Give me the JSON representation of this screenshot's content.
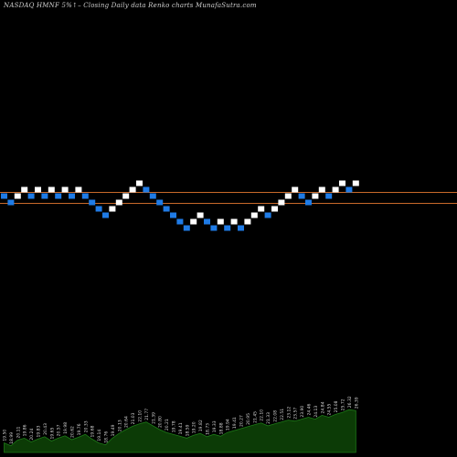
{
  "header": {
    "symbol": "NASDAQ HMNF",
    "change": "5%",
    "tail": "Closing Daily data  Renko charts MunafaSutra.com"
  },
  "chart_data": {
    "type": "renko",
    "title": "NASDAQ HMNF 5% Closing Daily data Renko charts MunafaSutra.com",
    "colors": {
      "up": "#ffffff",
      "down": "#1f7be6",
      "reference_line": "#c8692a",
      "volume_fill": "#0c3b06",
      "volume_line": "#1d7a17",
      "label": "#d8d8d8"
    },
    "reference_levels": [
      19.9,
      18.0
    ],
    "bricks": [
      {
        "dir": "down",
        "level": 19.0
      },
      {
        "dir": "down",
        "level": 18.0
      },
      {
        "dir": "up",
        "level": 19.0
      },
      {
        "dir": "up",
        "level": 20.0
      },
      {
        "dir": "down",
        "level": 19.0
      },
      {
        "dir": "up",
        "level": 20.0
      },
      {
        "dir": "down",
        "level": 19.0
      },
      {
        "dir": "up",
        "level": 20.0
      },
      {
        "dir": "down",
        "level": 19.0
      },
      {
        "dir": "up",
        "level": 20.0
      },
      {
        "dir": "down",
        "level": 19.0
      },
      {
        "dir": "up",
        "level": 20.0
      },
      {
        "dir": "down",
        "level": 19.0
      },
      {
        "dir": "down",
        "level": 18.0
      },
      {
        "dir": "down",
        "level": 17.0
      },
      {
        "dir": "down",
        "level": 16.0
      },
      {
        "dir": "up",
        "level": 17.0
      },
      {
        "dir": "up",
        "level": 18.0
      },
      {
        "dir": "up",
        "level": 19.0
      },
      {
        "dir": "up",
        "level": 20.0
      },
      {
        "dir": "up",
        "level": 21.0
      },
      {
        "dir": "down",
        "level": 20.0
      },
      {
        "dir": "down",
        "level": 19.0
      },
      {
        "dir": "down",
        "level": 18.0
      },
      {
        "dir": "down",
        "level": 17.0
      },
      {
        "dir": "down",
        "level": 16.0
      },
      {
        "dir": "down",
        "level": 15.0
      },
      {
        "dir": "down",
        "level": 14.0
      },
      {
        "dir": "up",
        "level": 15.0
      },
      {
        "dir": "up",
        "level": 16.0
      },
      {
        "dir": "down",
        "level": 15.0
      },
      {
        "dir": "down",
        "level": 14.0
      },
      {
        "dir": "up",
        "level": 15.0
      },
      {
        "dir": "down",
        "level": 14.0
      },
      {
        "dir": "up",
        "level": 15.0
      },
      {
        "dir": "down",
        "level": 14.0
      },
      {
        "dir": "up",
        "level": 15.0
      },
      {
        "dir": "up",
        "level": 16.0
      },
      {
        "dir": "up",
        "level": 17.0
      },
      {
        "dir": "down",
        "level": 16.0
      },
      {
        "dir": "up",
        "level": 17.0
      },
      {
        "dir": "up",
        "level": 18.0
      },
      {
        "dir": "up",
        "level": 19.0
      },
      {
        "dir": "up",
        "level": 20.0
      },
      {
        "dir": "down",
        "level": 19.0
      },
      {
        "dir": "down",
        "level": 18.0
      },
      {
        "dir": "up",
        "level": 19.0
      },
      {
        "dir": "up",
        "level": 20.0
      },
      {
        "dir": "down",
        "level": 19.0
      },
      {
        "dir": "up",
        "level": 20.0
      },
      {
        "dir": "up",
        "level": 21.0
      },
      {
        "dir": "down",
        "level": 20.0
      },
      {
        "dir": "up",
        "level": 21.0
      }
    ],
    "date_labels": [
      "19.50",
      "18.99",
      "20.11",
      "19.86",
      "20.24",
      "19.83",
      "20.43",
      "19.65",
      "20.57",
      "19.98",
      "20.62",
      "19.76",
      "20.33",
      "19.68",
      "19.14",
      "18.76",
      "19.49",
      "20.13",
      "20.64",
      "21.03",
      "22.10",
      "21.77",
      "21.39",
      "20.80",
      "20.21",
      "19.78",
      "19.41",
      "18.59",
      "19.20",
      "19.82",
      "18.73",
      "19.33",
      "18.88",
      "19.94",
      "19.41",
      "20.27",
      "20.95",
      "21.45",
      "22.10",
      "21.33",
      "22.08",
      "22.51",
      "23.12",
      "23.57",
      "23.90",
      "24.46",
      "24.13",
      "24.84",
      "24.55",
      "25.08",
      "25.72",
      "26.32",
      "26.39"
    ],
    "volume": [
      0.2,
      0.14,
      0.26,
      0.3,
      0.22,
      0.28,
      0.33,
      0.24,
      0.3,
      0.35,
      0.27,
      0.32,
      0.38,
      0.28,
      0.2,
      0.16,
      0.3,
      0.4,
      0.48,
      0.55,
      0.6,
      0.64,
      0.56,
      0.48,
      0.42,
      0.38,
      0.34,
      0.3,
      0.36,
      0.4,
      0.33,
      0.38,
      0.34,
      0.42,
      0.46,
      0.5,
      0.54,
      0.58,
      0.62,
      0.56,
      0.6,
      0.64,
      0.68,
      0.66,
      0.7,
      0.74,
      0.7,
      0.78,
      0.74,
      0.8,
      0.84,
      0.9,
      0.88
    ]
  }
}
